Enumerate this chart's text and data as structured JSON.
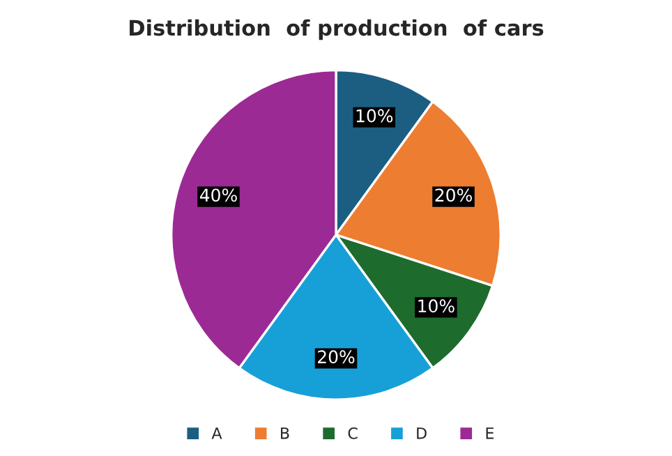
{
  "chart_data": {
    "type": "pie",
    "title": "Distribution  of production  of cars",
    "categories": [
      "A",
      "B",
      "C",
      "D",
      "E"
    ],
    "values": [
      10,
      20,
      10,
      20,
      40
    ],
    "value_labels": [
      "10%",
      "20%",
      "10%",
      "20%",
      "40%"
    ],
    "colors": [
      "#1b5e82",
      "#ed7d31",
      "#1e6b2e",
      "#17a0d8",
      "#9c2a94"
    ],
    "legend": "bottom"
  }
}
